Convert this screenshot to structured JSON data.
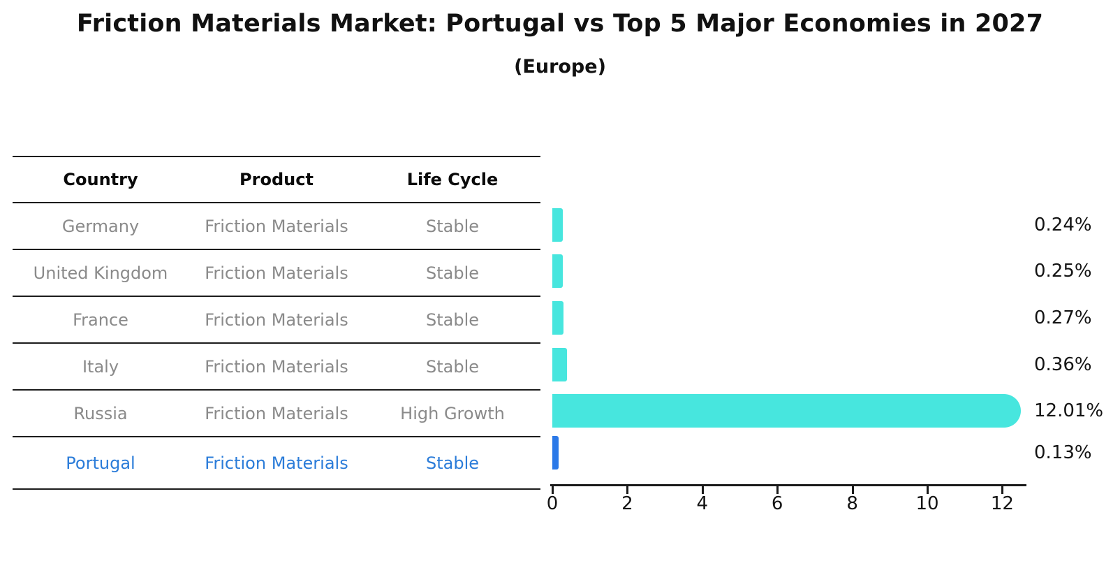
{
  "page": {
    "title": "Friction Materials Market: Portugal vs Top 5 Major Economies in 2027",
    "subtitle": "(Europe)"
  },
  "table": {
    "headers": [
      "Country",
      "Product",
      "Life Cycle"
    ],
    "rows": [
      {
        "country": "Germany",
        "product": "Friction Materials",
        "life_cycle": "Stable",
        "highlighted": false
      },
      {
        "country": "United Kingdom",
        "product": "Friction Materials",
        "life_cycle": "Stable",
        "highlighted": false
      },
      {
        "country": "France",
        "product": "Friction Materials",
        "life_cycle": "Stable",
        "highlighted": false
      },
      {
        "country": "Italy",
        "product": "Friction Materials",
        "life_cycle": "Stable",
        "highlighted": false
      },
      {
        "country": "Russia",
        "product": "Friction Materials",
        "life_cycle": "High Growth",
        "highlighted": false
      },
      {
        "country": "Portugal",
        "product": "Friction Materials",
        "life_cycle": "Stable",
        "highlighted": true
      }
    ]
  },
  "chart_data": {
    "type": "bar",
    "orientation": "horizontal",
    "title": "Friction Materials Market: Portugal vs Top 5 Major Economies in 2027",
    "subtitle": "(Europe)",
    "categories": [
      "Germany",
      "United Kingdom",
      "France",
      "Italy",
      "Russia",
      "Portugal"
    ],
    "values": [
      0.24,
      0.25,
      0.27,
      0.36,
      12.01,
      0.13
    ],
    "value_labels": [
      "0.24%",
      "0.25%",
      "0.27%",
      "0.36%",
      "12.01%",
      "0.13%"
    ],
    "x_ticks": [
      "0",
      "2",
      "4",
      "6",
      "8",
      "10",
      "12"
    ],
    "xlim": [
      0,
      12.55
    ],
    "xlabel": "",
    "ylabel": "",
    "grid": false,
    "legend": "none",
    "bar_color": "#47e6de",
    "highlight_index": 5,
    "highlight_bar_color": "#2b79e8",
    "highlight_text_color": "#2b7cd9",
    "axis_color": "#1a1a1a"
  }
}
